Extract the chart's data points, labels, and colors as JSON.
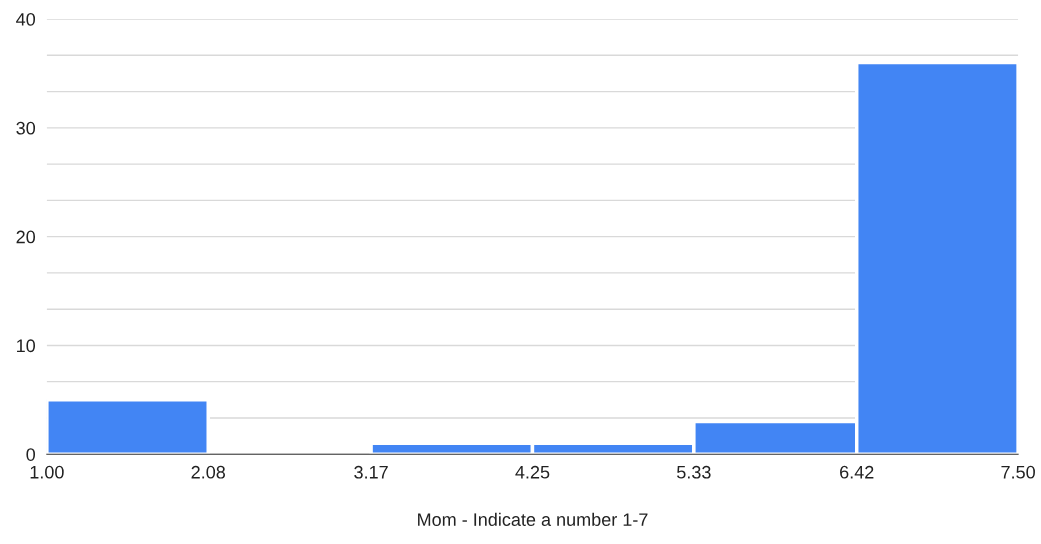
{
  "chart_data": {
    "type": "histogram",
    "xlabel": "Mom - Indicate a number 1-7",
    "bins": [
      1.0,
      2.08,
      3.17,
      4.25,
      5.33,
      6.42,
      7.5
    ],
    "values": [
      5,
      0,
      1,
      1,
      3,
      36
    ],
    "color": "#4285f4",
    "xlim": [
      1.0,
      7.5
    ],
    "xticks": [
      {
        "value": 1.0,
        "label": "1.00"
      },
      {
        "value": 2.08,
        "label": "2.08"
      },
      {
        "value": 3.17,
        "label": "3.17"
      },
      {
        "value": 4.25,
        "label": "4.25"
      },
      {
        "value": 5.33,
        "label": "5.33"
      },
      {
        "value": 6.42,
        "label": "6.42"
      },
      {
        "value": 7.5,
        "label": "7.50"
      }
    ],
    "ylim": [
      0,
      40
    ],
    "yticks": [
      0,
      {
        "value": 3.33,
        "label": null
      },
      {
        "value": 6.67,
        "label": null
      },
      10,
      {
        "value": 13.33,
        "label": null
      },
      {
        "value": 16.67,
        "label": null
      },
      20,
      {
        "value": 23.33,
        "label": null
      },
      {
        "value": 26.67,
        "label": null
      },
      30,
      {
        "value": 33.33,
        "label": null
      },
      {
        "value": 36.67,
        "label": null
      },
      40
    ],
    "grid": "y"
  }
}
